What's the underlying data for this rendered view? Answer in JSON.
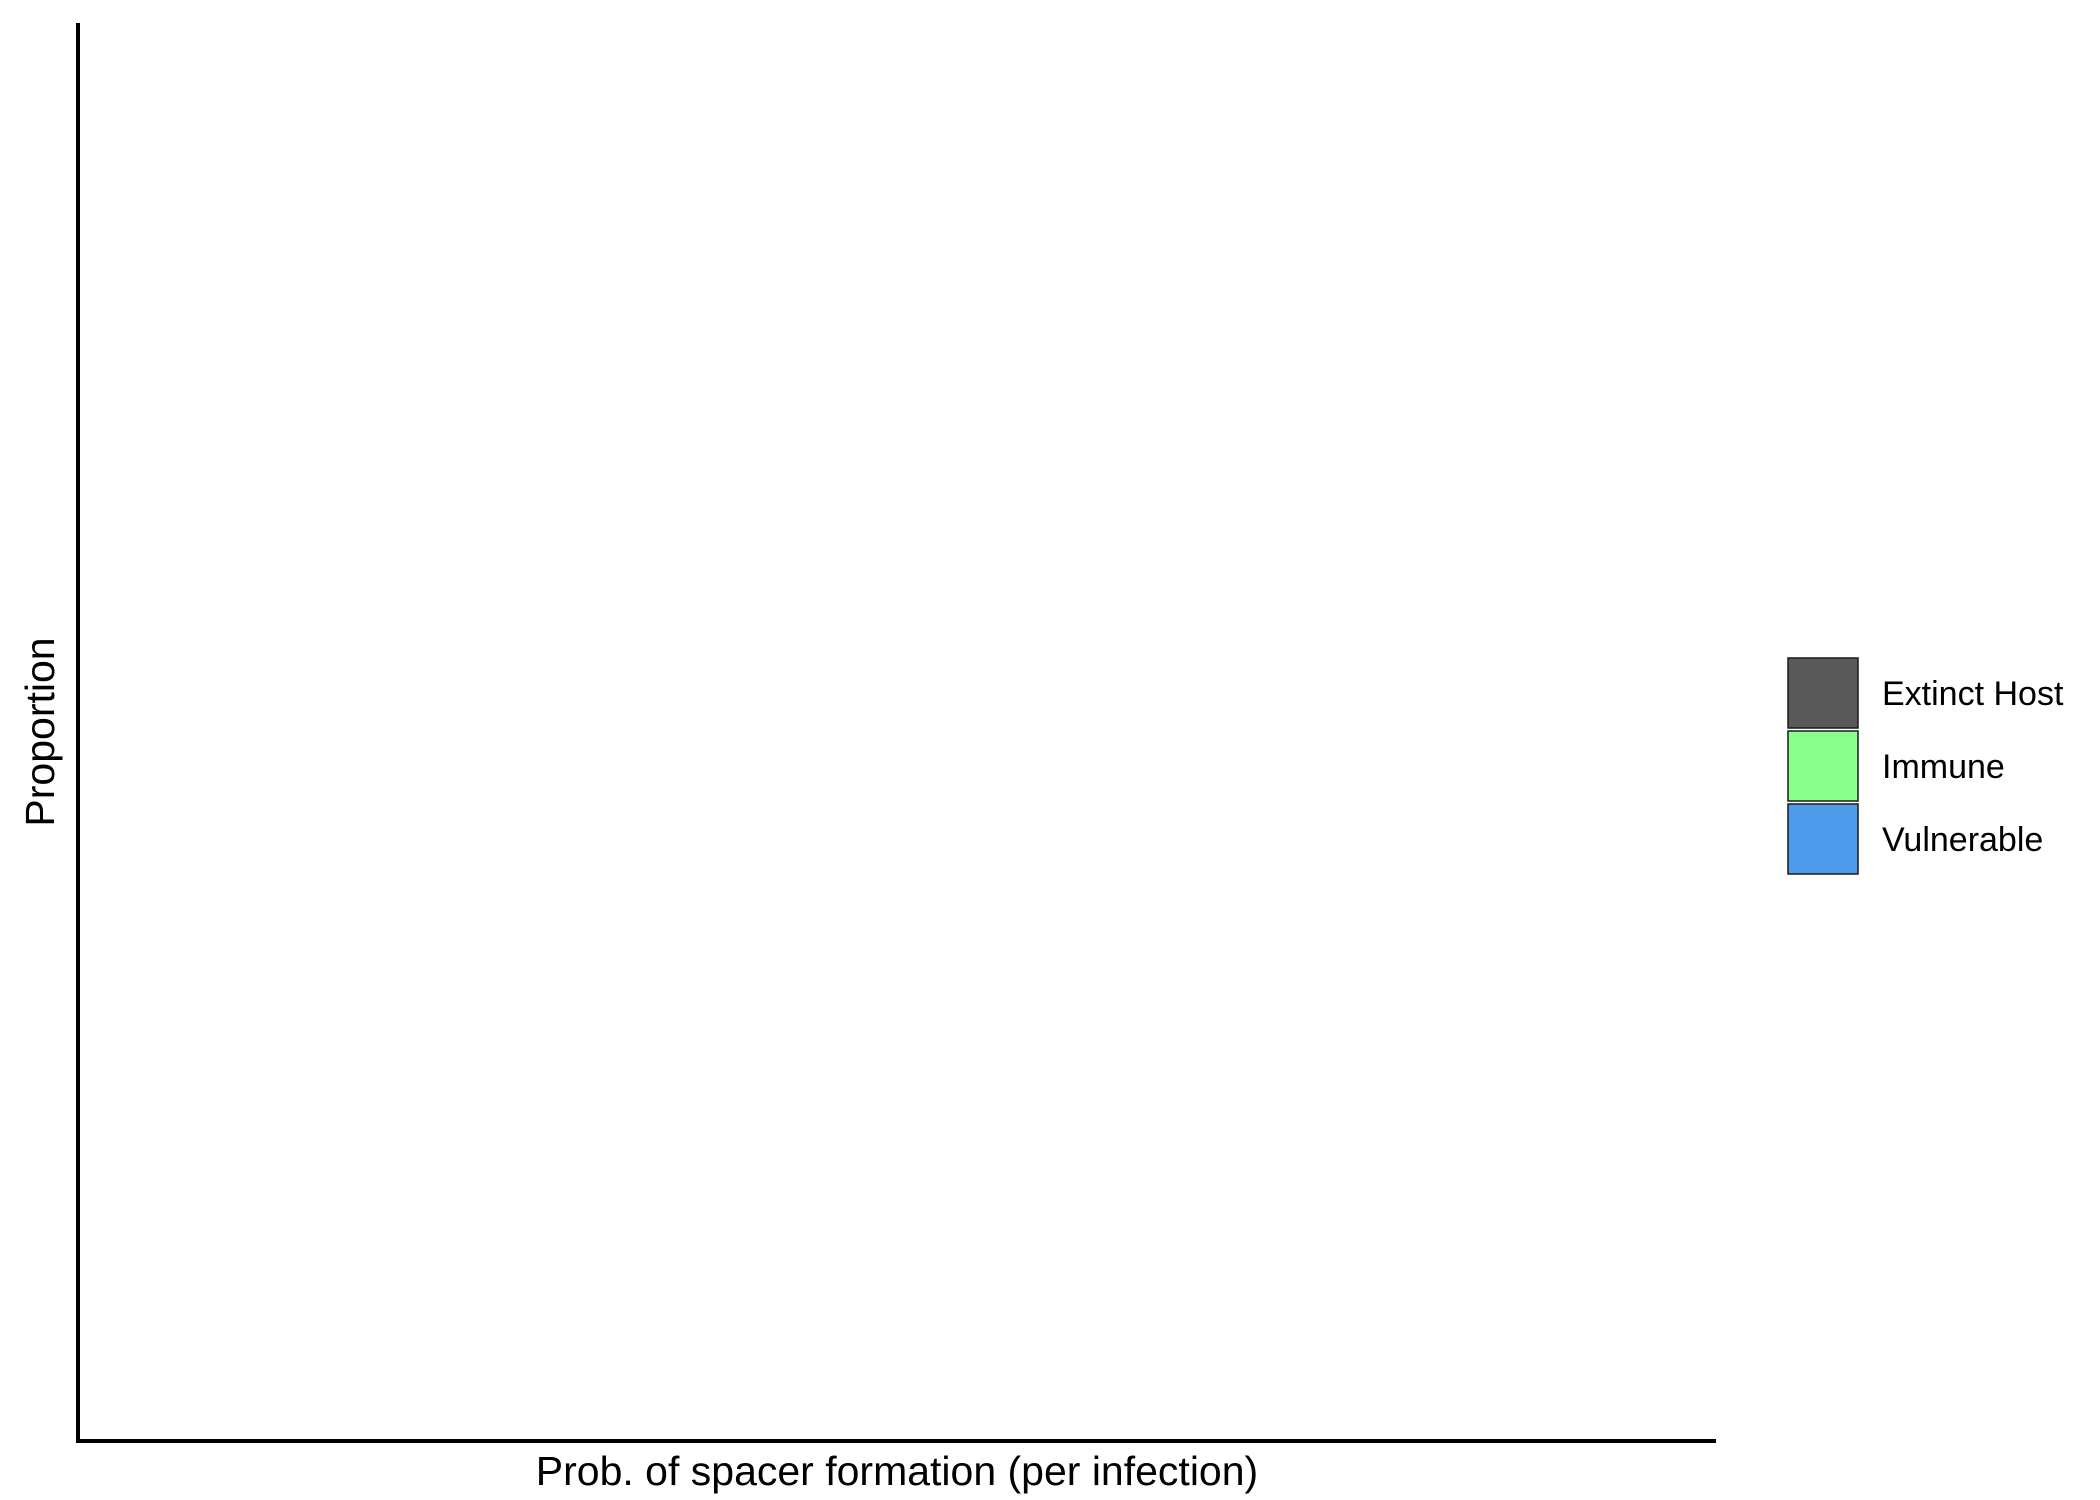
{
  "chart_data": {
    "type": "bar",
    "xlabel": "Prob. of spacer formation (per infection)",
    "ylabel": "Proportion",
    "categories": [],
    "series": [
      {
        "name": "Extinct Host",
        "values": []
      },
      {
        "name": "Immune",
        "values": []
      },
      {
        "name": "Vulnerable",
        "values": []
      }
    ],
    "colors": {
      "Extinct Host": "#595959",
      "Immune": "#8bff8b",
      "Vulnerable": "#4f9bec"
    },
    "ylim": [
      0,
      1
    ],
    "grid": false,
    "legend_position": "right"
  }
}
